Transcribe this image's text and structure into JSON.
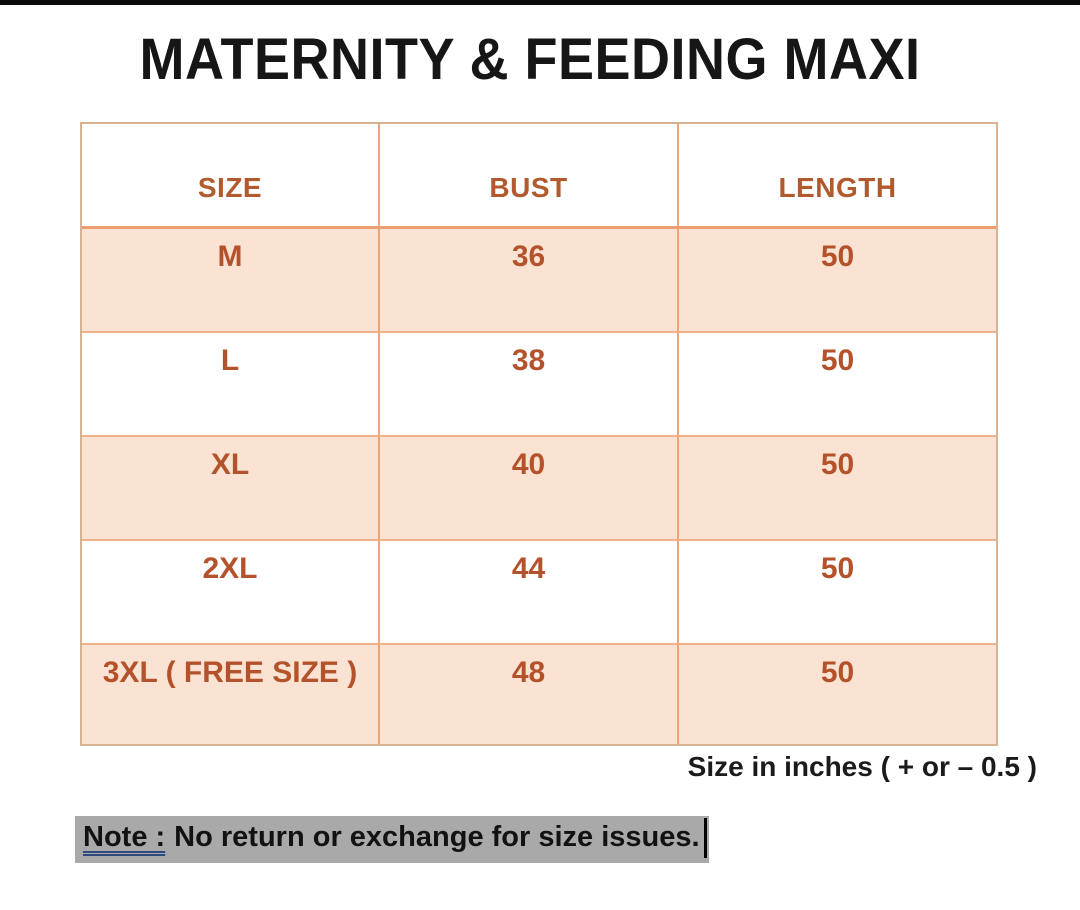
{
  "title": "MATERNITY & FEEDING MAXI",
  "table": {
    "headers": [
      "SIZE",
      "BUST",
      "LENGTH"
    ],
    "rows": [
      {
        "size": "M",
        "bust": "36",
        "length": "50"
      },
      {
        "size": "L",
        "bust": "38",
        "length": "50"
      },
      {
        "size": "XL",
        "bust": "40",
        "length": "50"
      },
      {
        "size": "2XL",
        "bust": "44",
        "length": "50"
      },
      {
        "size": "3XL ( FREE SIZE )",
        "bust": "48",
        "length": "50"
      }
    ]
  },
  "footnote": "Size in inches ( + or  – 0.5 )",
  "note": {
    "label": "Note :",
    "text": "No return or exchange for size issues."
  },
  "colors": {
    "title_text": "#161616",
    "header_text": "#b05a2d",
    "data_text": "#b4532b",
    "row_shade": "#fbe3d3",
    "table_border_outer": "#d9b293",
    "table_border_inner": "#eaa57c",
    "note_highlight": "#a9a9a9",
    "note_underline": "#2e4a7d"
  }
}
